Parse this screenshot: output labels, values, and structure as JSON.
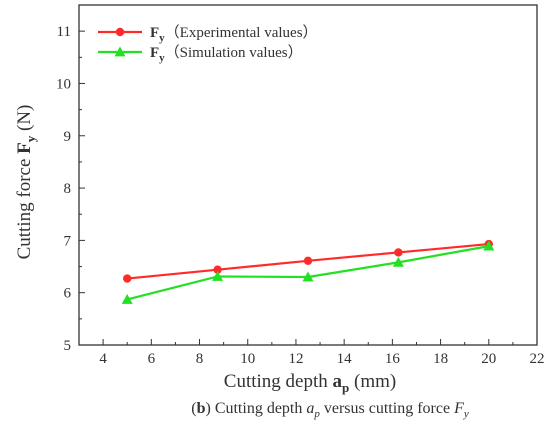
{
  "chart_data": {
    "type": "line",
    "title": "",
    "xlabel": {
      "prefix": "Cutting depth ",
      "symbol": "a",
      "subscript": "p",
      "suffix": " (mm)"
    },
    "ylabel": {
      "prefix": "Cutting force ",
      "symbol": "F",
      "subscript": "y",
      "suffix": " (N)"
    },
    "xlim": [
      3,
      22
    ],
    "ylim": [
      5,
      11.5
    ],
    "xticks": [
      4,
      6,
      8,
      10,
      12,
      14,
      16,
      18,
      20,
      22
    ],
    "yticks": [
      5,
      6,
      7,
      8,
      9,
      10,
      11
    ],
    "grid": false,
    "legend_position": "top-left",
    "series": [
      {
        "name": "Fy (Experimental values)",
        "legend": {
          "symbol": "F",
          "subscript": "y",
          "text": "（Experimental values）"
        },
        "color": "#ff2b2b",
        "marker": "circle",
        "x": [
          5,
          8.75,
          12.5,
          16.25,
          20
        ],
        "y": [
          6.27,
          6.44,
          6.61,
          6.77,
          6.93
        ]
      },
      {
        "name": "Fy (Simulation values)",
        "legend": {
          "symbol": "F",
          "subscript": "y",
          "text": "（Simulation values）"
        },
        "color": "#22e022",
        "marker": "triangle",
        "x": [
          5,
          8.75,
          12.5,
          16.25,
          20
        ],
        "y": [
          5.87,
          6.31,
          6.3,
          6.58,
          6.89
        ]
      }
    ]
  },
  "caption": {
    "open": "(",
    "letter": "b",
    "close": ")",
    "t1": " Cutting depth ",
    "v1": "a",
    "s1": "p",
    "t2": " versus cutting force ",
    "v2": "F",
    "s2": "y"
  }
}
